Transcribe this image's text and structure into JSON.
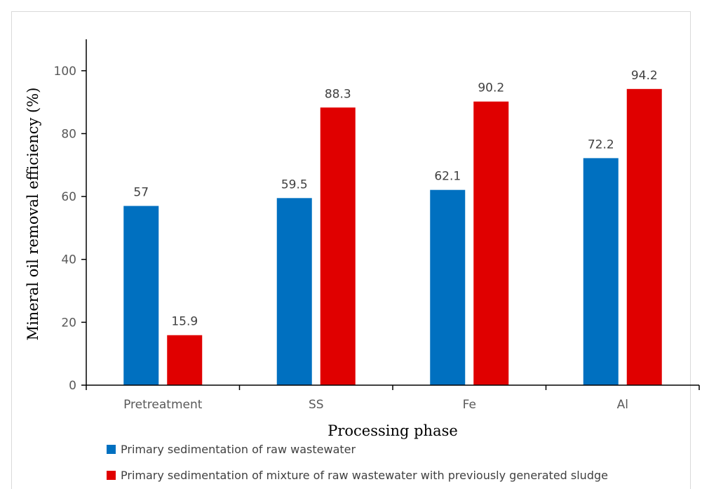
{
  "chart_data": {
    "type": "bar",
    "xlabel": "Processing phase",
    "ylabel": "Mineral oil removal efficiency (%)",
    "ylim": [
      0,
      110
    ],
    "yticks": [
      0,
      20,
      40,
      60,
      80,
      100
    ],
    "grid": false,
    "legend_position": "bottom-left",
    "categories": [
      "Pretreatment",
      "SS",
      "Fe",
      "Al"
    ],
    "series": [
      {
        "name": "Primary sedimentation of raw wastewater",
        "color": "#0070C0",
        "values": [
          57,
          59.5,
          62.1,
          72.2
        ],
        "labels": [
          "57",
          "59.5",
          "62.1",
          "72.2"
        ]
      },
      {
        "name": "Primary sedimentation of mixture of raw wastewater with previously generated sludge",
        "color": "#E00000",
        "values": [
          15.9,
          88.3,
          90.2,
          94.2
        ],
        "labels": [
          "15.9",
          "88.3",
          "90.2",
          "94.2"
        ]
      }
    ]
  }
}
